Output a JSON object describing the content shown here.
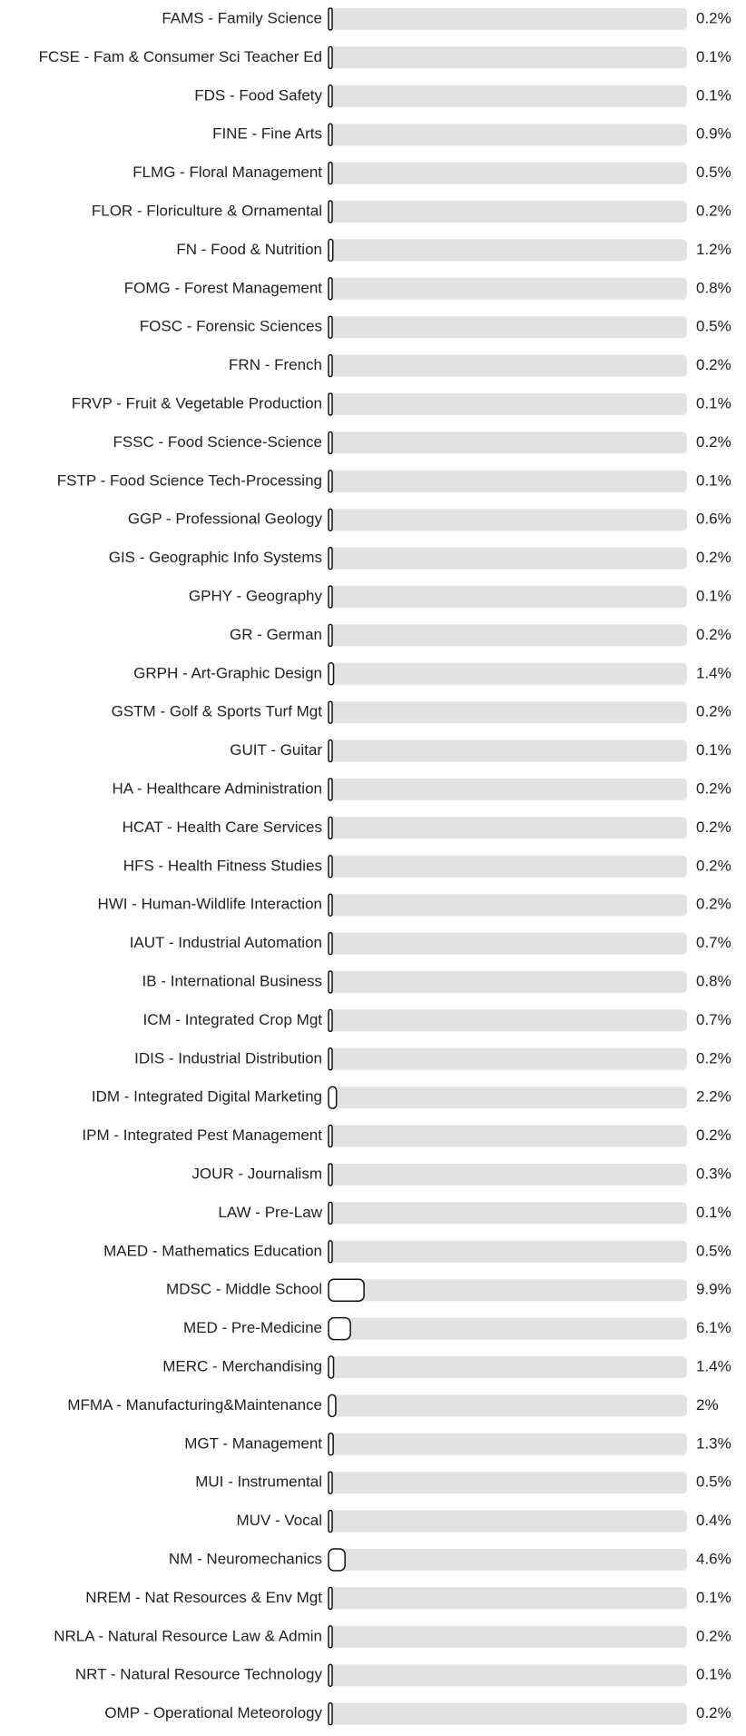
{
  "chart_data": {
    "type": "bar",
    "orientation": "horizontal",
    "categories": [
      "FAMS - Family Science",
      "FCSE - Fam & Consumer Sci Teacher Ed",
      "FDS - Food Safety",
      "FINE - Fine Arts",
      "FLMG - Floral Management",
      "FLOR - Floriculture & Ornamental",
      "FN - Food & Nutrition",
      "FOMG - Forest Management",
      "FOSC - Forensic Sciences",
      "FRN - French",
      "FRVP - Fruit & Vegetable Production",
      "FSSC - Food Science-Science",
      "FSTP - Food Science Tech-Processing",
      "GGP - Professional Geology",
      "GIS - Geographic Info Systems",
      "GPHY - Geography",
      "GR - German",
      "GRPH - Art-Graphic Design",
      "GSTM - Golf & Sports Turf Mgt",
      "GUIT - Guitar",
      "HA - Healthcare Administration",
      "HCAT - Health Care Services",
      "HFS - Health Fitness Studies",
      "HWI - Human-Wildlife Interaction",
      "IAUT - Industrial Automation",
      "IB - International Business",
      "ICM - Integrated Crop Mgt",
      "IDIS - Industrial Distribution",
      "IDM - Integrated Digital Marketing",
      "IPM - Integrated Pest Management",
      "JOUR - Journalism",
      "LAW - Pre-Law",
      "MAED - Mathematics Education",
      "MDSC - Middle School",
      "MED - Pre-Medicine",
      "MERC - Merchandising",
      "MFMA - Manufacturing&Maintenance",
      "MGT - Management",
      "MUI - Instrumental",
      "MUV - Vocal",
      "NM - Neuromechanics",
      "NREM - Nat Resources & Env Mgt",
      "NRLA - Natural Resource Law & Admin",
      "NRT - Natural Resource Technology",
      "OMP - Operational Meteorology"
    ],
    "values": [
      0.2,
      0.1,
      0.1,
      0.9,
      0.5,
      0.2,
      1.2,
      0.8,
      0.5,
      0.2,
      0.1,
      0.2,
      0.1,
      0.6,
      0.2,
      0.1,
      0.2,
      1.4,
      0.2,
      0.1,
      0.2,
      0.2,
      0.2,
      0.2,
      0.7,
      0.8,
      0.7,
      0.2,
      2.2,
      0.2,
      0.3,
      0.1,
      0.5,
      9.9,
      6.1,
      1.4,
      2,
      1.3,
      0.5,
      0.4,
      4.6,
      0.1,
      0.2,
      0.1,
      0.2
    ],
    "value_labels": [
      "0.2%",
      "0.1%",
      "0.1%",
      "0.9%",
      "0.5%",
      "0.2%",
      "1.2%",
      "0.8%",
      "0.5%",
      "0.2%",
      "0.1%",
      "0.2%",
      "0.1%",
      "0.6%",
      "0.2%",
      "0.1%",
      "0.2%",
      "1.4%",
      "0.2%",
      "0.1%",
      "0.2%",
      "0.2%",
      "0.2%",
      "0.2%",
      "0.7%",
      "0.8%",
      "0.7%",
      "0.2%",
      "2.2%",
      "0.2%",
      "0.3%",
      "0.1%",
      "0.5%",
      "9.9%",
      "6.1%",
      "1.4%",
      "2%",
      "1.3%",
      "0.5%",
      "0.4%",
      "4.6%",
      "0.1%",
      "0.2%",
      "0.1%",
      "0.2%"
    ],
    "xlim": [
      0,
      100
    ],
    "color": "#ffffff",
    "track_color": "#e2e2e2"
  }
}
